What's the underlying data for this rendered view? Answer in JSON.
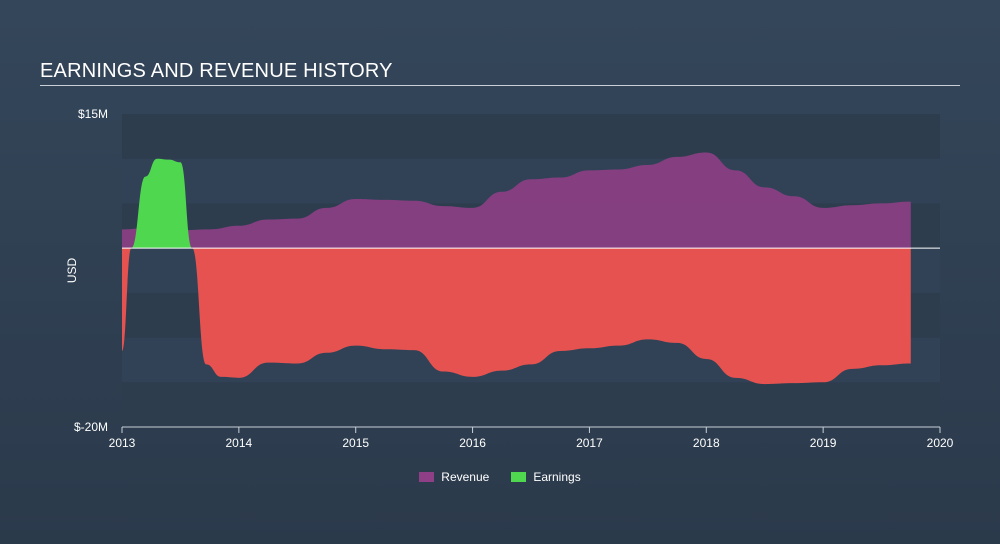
{
  "title": "EARNINGS AND REVENUE HISTORY",
  "colors": {
    "revenue": "#8e3f86",
    "earnings_pos": "#4fd84f",
    "earnings_neg": "#ef5350",
    "band": "#2e3d4e",
    "zero": "#ffffff"
  },
  "chart_data": {
    "type": "area",
    "title": "EARNINGS AND REVENUE HISTORY",
    "ylabel": "USD",
    "ylim": [
      -20,
      15
    ],
    "xlim": [
      2013,
      2020
    ],
    "y_tick_labels": [
      "$15M",
      "$-20M"
    ],
    "x_ticks": [
      "2013",
      "2014",
      "2015",
      "2016",
      "2017",
      "2018",
      "2019",
      "2020"
    ],
    "legend": [
      "Revenue",
      "Earnings"
    ],
    "series": [
      {
        "name": "Revenue",
        "x": [
          2013.0,
          2013.25,
          2013.5,
          2013.75,
          2014.0,
          2014.25,
          2014.5,
          2014.75,
          2015.0,
          2015.25,
          2015.5,
          2015.75,
          2016.0,
          2016.25,
          2016.5,
          2016.75,
          2017.0,
          2017.25,
          2017.5,
          2017.75,
          2018.0,
          2018.25,
          2018.5,
          2018.75,
          2019.0,
          2019.25,
          2019.5,
          2019.75
        ],
        "values": [
          2.1,
          2.3,
          2.0,
          2.1,
          2.5,
          3.2,
          3.3,
          4.5,
          5.5,
          5.4,
          5.3,
          4.7,
          4.5,
          6.3,
          7.7,
          7.9,
          8.7,
          8.8,
          9.3,
          10.2,
          10.7,
          8.7,
          6.8,
          5.8,
          4.5,
          4.8,
          5.0,
          5.2
        ]
      },
      {
        "name": "Earnings",
        "x": [
          2013.0,
          2013.08,
          2013.2,
          2013.3,
          2013.4,
          2013.5,
          2013.6,
          2013.72,
          2013.85,
          2014.0,
          2014.25,
          2014.5,
          2014.75,
          2015.0,
          2015.25,
          2015.5,
          2015.75,
          2016.0,
          2016.25,
          2016.5,
          2016.75,
          2017.0,
          2017.25,
          2017.5,
          2017.75,
          2018.0,
          2018.25,
          2018.5,
          2018.75,
          2019.0,
          2019.25,
          2019.5,
          2019.75
        ],
        "values": [
          -11.5,
          0.0,
          8.0,
          10.0,
          9.9,
          9.6,
          0.0,
          -13.0,
          -14.4,
          -14.5,
          -12.8,
          -12.9,
          -11.7,
          -10.9,
          -11.3,
          -11.4,
          -13.8,
          -14.4,
          -13.7,
          -13.0,
          -11.5,
          -11.2,
          -10.9,
          -10.2,
          -10.6,
          -12.4,
          -14.5,
          -15.2,
          -15.1,
          -15.0,
          -13.5,
          -13.1,
          -12.9
        ]
      }
    ]
  }
}
